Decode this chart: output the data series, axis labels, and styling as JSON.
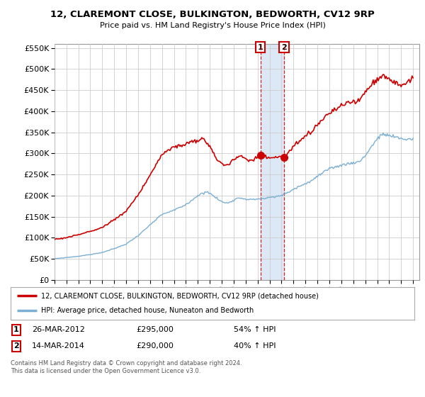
{
  "title": "12, CLAREMONT CLOSE, BULKINGTON, BEDWORTH, CV12 9RP",
  "subtitle": "Price paid vs. HM Land Registry's House Price Index (HPI)",
  "legend_line1": "12, CLAREMONT CLOSE, BULKINGTON, BEDWORTH, CV12 9RP (detached house)",
  "legend_line2": "HPI: Average price, detached house, Nuneaton and Bedworth",
  "transaction1_date": "26-MAR-2012",
  "transaction1_price": "£295,000",
  "transaction1_hpi": "54% ↑ HPI",
  "transaction2_date": "14-MAR-2014",
  "transaction2_price": "£290,000",
  "transaction2_hpi": "40% ↑ HPI",
  "footnote": "Contains HM Land Registry data © Crown copyright and database right 2024.\nThis data is licensed under the Open Government Licence v3.0.",
  "transaction1_x": 2012.23,
  "transaction1_y": 295000,
  "transaction2_x": 2014.2,
  "transaction2_y": 290000,
  "hpi_color": "#7bafd4",
  "price_color": "#cc0000",
  "shade_color": "#dce8f5",
  "background_color": "#ffffff",
  "grid_color": "#cccccc",
  "ylim": [
    0,
    560000
  ],
  "xlim_start": 1995.0,
  "xlim_end": 2025.5,
  "hpi_anchors": {
    "1995.0": 50000,
    "1996.0": 53000,
    "1997.0": 56000,
    "1998.0": 60000,
    "1999.0": 65000,
    "2000.0": 74000,
    "2001.0": 85000,
    "2002.0": 105000,
    "2003.0": 130000,
    "2004.0": 155000,
    "2005.0": 165000,
    "2006.0": 178000,
    "2007.0": 200000,
    "2007.75": 210000,
    "2008.5": 195000,
    "2009.0": 185000,
    "2009.5": 182000,
    "2010.0": 190000,
    "2010.5": 195000,
    "2011.0": 192000,
    "2011.5": 190000,
    "2012.0": 192000,
    "2012.5": 193000,
    "2013.0": 195000,
    "2013.5": 197000,
    "2014.0": 200000,
    "2014.5": 207000,
    "2015.0": 215000,
    "2015.5": 222000,
    "2016.0": 228000,
    "2016.5": 235000,
    "2017.0": 245000,
    "2017.5": 255000,
    "2018.0": 262000,
    "2018.5": 268000,
    "2019.0": 272000,
    "2019.5": 275000,
    "2020.0": 278000,
    "2020.5": 280000,
    "2021.0": 295000,
    "2021.5": 315000,
    "2022.0": 335000,
    "2022.5": 345000,
    "2023.0": 342000,
    "2023.5": 338000,
    "2024.0": 335000,
    "2024.5": 333000,
    "2025.0": 335000
  },
  "prop_anchors": {
    "1995.0": 96000,
    "1996.0": 100000,
    "1997.0": 107000,
    "1998.0": 115000,
    "1999.0": 124000,
    "2000.0": 143000,
    "2001.0": 163000,
    "2002.0": 201000,
    "2003.0": 249000,
    "2004.0": 297000,
    "2005.0": 315000,
    "2006.0": 322000,
    "2007.0": 330000,
    "2007.5": 335000,
    "2008.0": 315000,
    "2008.5": 290000,
    "2009.0": 275000,
    "2009.5": 272000,
    "2010.0": 285000,
    "2010.5": 293000,
    "2011.0": 288000,
    "2011.5": 283000,
    "2012.0": 290000,
    "2012.23": 295000,
    "2012.5": 292000,
    "2013.0": 290000,
    "2013.5": 291000,
    "2014.0": 292000,
    "2014.2": 290000,
    "2014.5": 300000,
    "2015.0": 315000,
    "2015.5": 328000,
    "2016.0": 340000,
    "2016.5": 350000,
    "2017.0": 368000,
    "2017.5": 382000,
    "2018.0": 395000,
    "2018.5": 405000,
    "2019.0": 412000,
    "2019.5": 418000,
    "2020.0": 422000,
    "2020.5": 425000,
    "2021.0": 445000,
    "2021.5": 462000,
    "2022.0": 478000,
    "2022.5": 485000,
    "2023.0": 475000,
    "2023.5": 468000,
    "2024.0": 462000,
    "2024.5": 470000,
    "2025.0": 478000
  }
}
